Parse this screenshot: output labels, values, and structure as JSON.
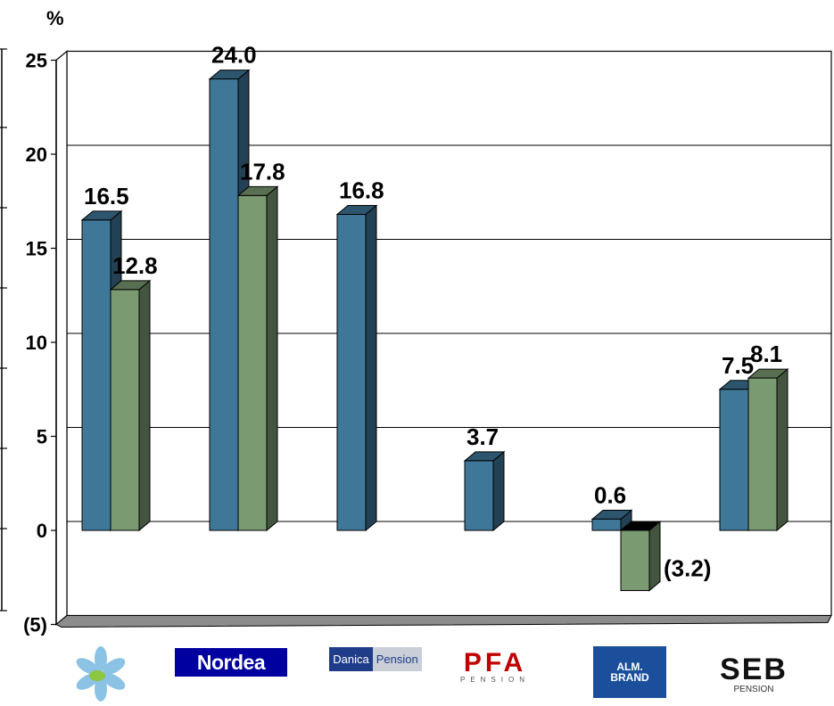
{
  "chart_data": {
    "type": "bar",
    "yunit": "%",
    "ylim": [
      -5,
      25
    ],
    "ytick_labels": [
      "(5)",
      "0",
      "5",
      "10",
      "15",
      "20",
      "25"
    ],
    "categories": [
      "",
      "Nordea",
      "Danica Pension",
      "PFA PENSION",
      "ALM. BRAND",
      "SEB PENSION"
    ],
    "series": [
      {
        "color": "#3f7799",
        "values": [
          16.5,
          24.0,
          16.8,
          3.7,
          0.6,
          7.5
        ],
        "labels": [
          "16.5",
          "24.0",
          "16.8",
          "3.7",
          "0.6",
          "7.5"
        ]
      },
      {
        "color": "#7a9a72",
        "values": [
          12.8,
          17.8,
          null,
          null,
          -3.2,
          8.1
        ],
        "labels": [
          "12.8",
          "17.8",
          "",
          "",
          "(3.2)",
          "8.1"
        ]
      }
    ],
    "grid": true,
    "legend": "none"
  },
  "logos": {
    "nordea": "Nordea",
    "danica_1": "Danica",
    "danica_2": "Pension",
    "pfa_1": "PFA",
    "pfa_2": "PENSION",
    "alm_1": "ALM.",
    "alm_2": "BRAND",
    "seb_1": "SEB",
    "seb_2": "PENSION"
  }
}
